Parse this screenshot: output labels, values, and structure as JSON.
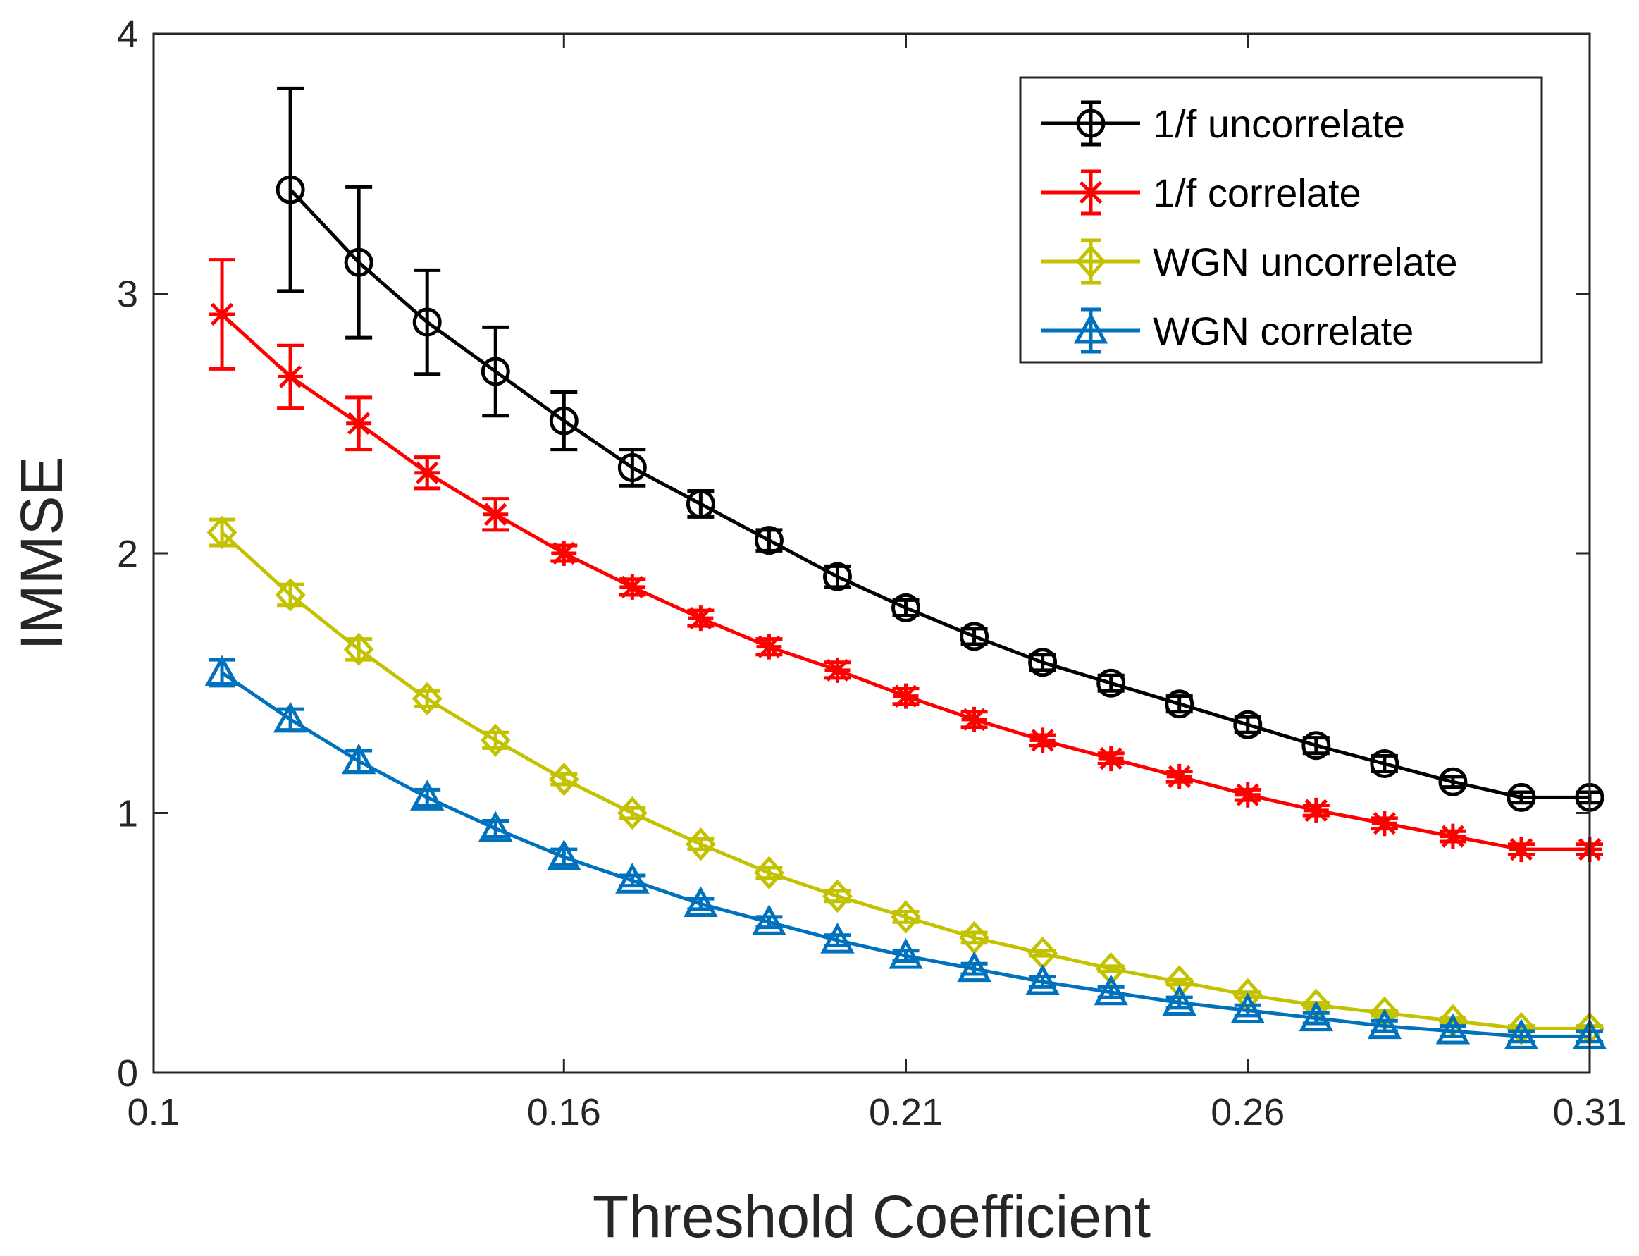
{
  "chart_data": {
    "type": "line",
    "title": "",
    "xlabel": "Threshold Coefficient",
    "ylabel": "IMMSE",
    "xlim": [
      0.1,
      0.31
    ],
    "ylim": [
      0,
      4
    ],
    "xticks": [
      0.1,
      0.16,
      0.21,
      0.26,
      0.31
    ],
    "xtick_labels": [
      "0.1",
      "0.16",
      "0.21",
      "0.26",
      "0.31"
    ],
    "yticks": [
      0,
      1,
      2,
      3,
      4
    ],
    "ytick_labels": [
      "0",
      "1",
      "2",
      "3",
      "4"
    ],
    "grid": false,
    "legend_position": "top-right",
    "series": [
      {
        "name": "1/f uncorrelate",
        "color": "#000000",
        "marker": "circle",
        "x": [
          0.12,
          0.13,
          0.14,
          0.15,
          0.16,
          0.17,
          0.18,
          0.19,
          0.2,
          0.21,
          0.22,
          0.23,
          0.24,
          0.25,
          0.26,
          0.27,
          0.28,
          0.29,
          0.3,
          0.31
        ],
        "values": [
          3.4,
          3.12,
          2.89,
          2.7,
          2.51,
          2.33,
          2.19,
          2.05,
          1.91,
          1.79,
          1.68,
          1.58,
          1.5,
          1.42,
          1.34,
          1.26,
          1.19,
          1.12,
          1.06,
          1.06
        ],
        "err": [
          0.39,
          0.29,
          0.2,
          0.17,
          0.11,
          0.07,
          0.05,
          0.04,
          0.04,
          0.03,
          0.03,
          0.03,
          0.03,
          0.03,
          0.03,
          0.03,
          0.03,
          0.02,
          0.02,
          0.02
        ]
      },
      {
        "name": "1/f correlate",
        "color": "#ff0000",
        "marker": "star",
        "x": [
          0.11,
          0.12,
          0.13,
          0.14,
          0.15,
          0.16,
          0.17,
          0.18,
          0.19,
          0.2,
          0.21,
          0.22,
          0.23,
          0.24,
          0.25,
          0.26,
          0.27,
          0.28,
          0.29,
          0.3,
          0.31
        ],
        "values": [
          2.92,
          2.68,
          2.5,
          2.31,
          2.15,
          2.0,
          1.87,
          1.75,
          1.64,
          1.55,
          1.45,
          1.36,
          1.28,
          1.21,
          1.14,
          1.07,
          1.01,
          0.96,
          0.91,
          0.86,
          0.86
        ],
        "err": [
          0.21,
          0.12,
          0.1,
          0.06,
          0.06,
          0.03,
          0.03,
          0.03,
          0.03,
          0.03,
          0.03,
          0.03,
          0.02,
          0.02,
          0.02,
          0.02,
          0.02,
          0.02,
          0.02,
          0.02,
          0.02
        ]
      },
      {
        "name": "WGN uncorrelate",
        "color": "#c2c200",
        "marker": "diamond",
        "x": [
          0.11,
          0.12,
          0.13,
          0.14,
          0.15,
          0.16,
          0.17,
          0.18,
          0.19,
          0.2,
          0.21,
          0.22,
          0.23,
          0.24,
          0.25,
          0.26,
          0.27,
          0.28,
          0.29,
          0.3,
          0.31
        ],
        "values": [
          2.08,
          1.84,
          1.63,
          1.44,
          1.28,
          1.13,
          1.0,
          0.88,
          0.77,
          0.68,
          0.6,
          0.52,
          0.46,
          0.4,
          0.35,
          0.3,
          0.26,
          0.23,
          0.2,
          0.17,
          0.17
        ],
        "err": [
          0.05,
          0.04,
          0.04,
          0.03,
          0.03,
          0.02,
          0.02,
          0.02,
          0.02,
          0.02,
          0.02,
          0.02,
          0.01,
          0.01,
          0.01,
          0.01,
          0.01,
          0.01,
          0.01,
          0.01,
          0.01
        ]
      },
      {
        "name": "WGN correlate",
        "color": "#0072bd",
        "marker": "triangle",
        "x": [
          0.11,
          0.12,
          0.13,
          0.14,
          0.15,
          0.16,
          0.17,
          0.18,
          0.19,
          0.2,
          0.21,
          0.22,
          0.23,
          0.24,
          0.25,
          0.26,
          0.27,
          0.28,
          0.29,
          0.3,
          0.31
        ],
        "values": [
          1.54,
          1.36,
          1.2,
          1.06,
          0.94,
          0.83,
          0.74,
          0.65,
          0.58,
          0.51,
          0.45,
          0.4,
          0.35,
          0.31,
          0.27,
          0.24,
          0.21,
          0.18,
          0.16,
          0.14,
          0.14
        ],
        "err": [
          0.05,
          0.04,
          0.04,
          0.03,
          0.03,
          0.03,
          0.02,
          0.02,
          0.02,
          0.02,
          0.02,
          0.02,
          0.02,
          0.02,
          0.02,
          0.02,
          0.02,
          0.02,
          0.02,
          0.02,
          0.02
        ]
      }
    ]
  }
}
